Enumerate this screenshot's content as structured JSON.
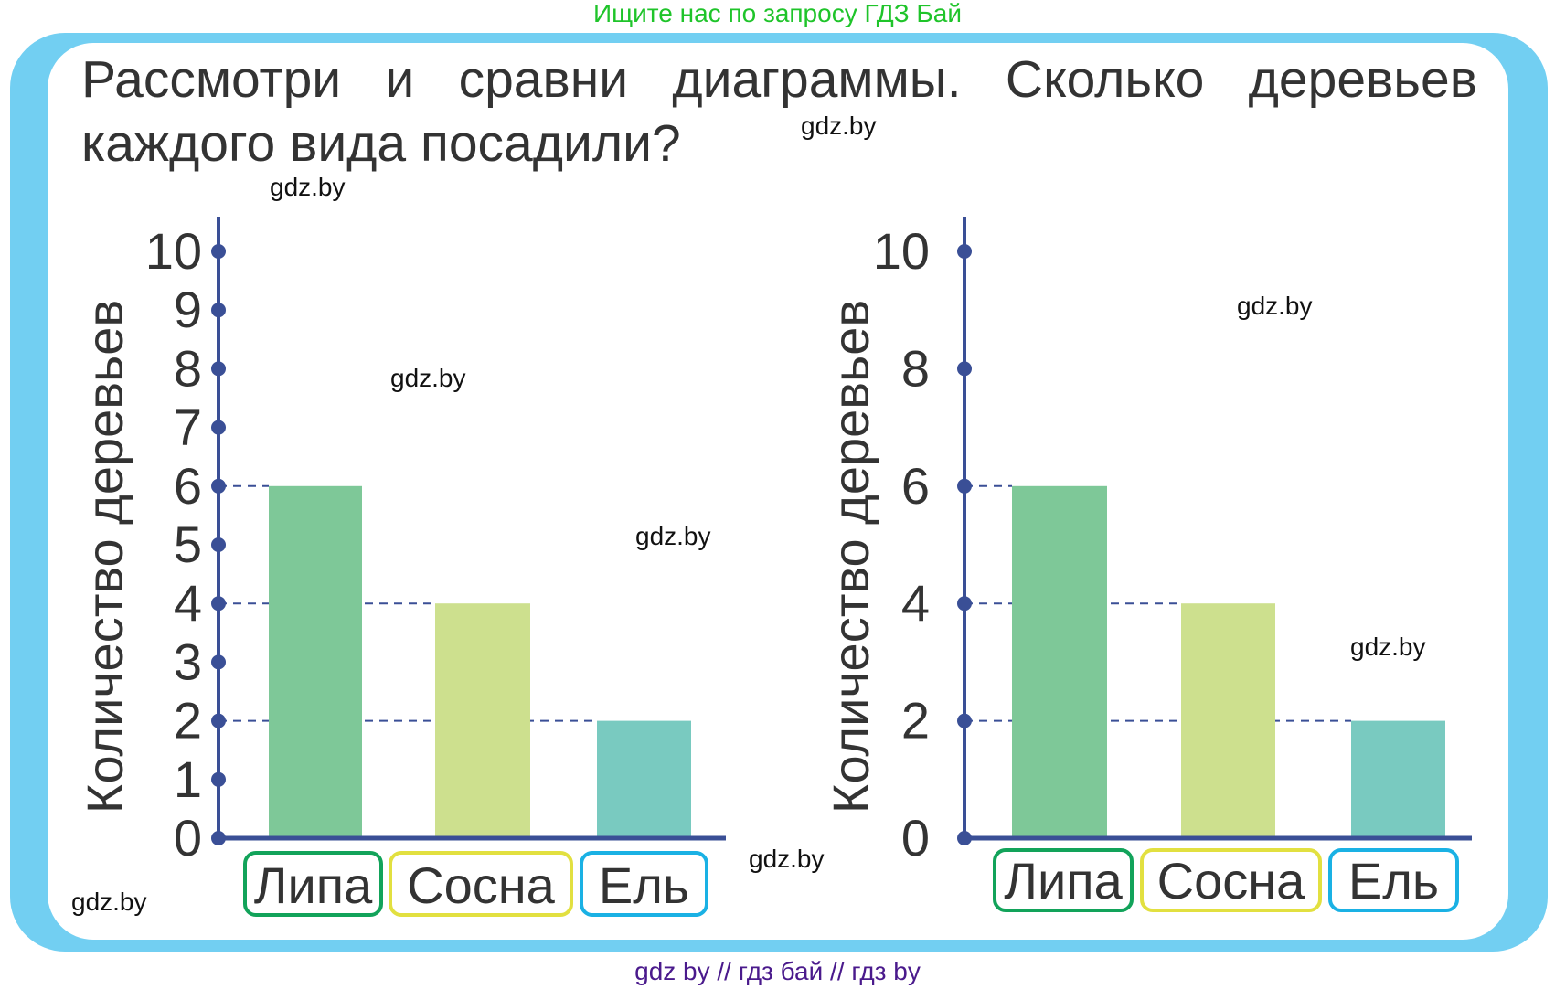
{
  "header_note": "Ищите нас по запросу ГДЗ Бай",
  "footer_note": "gdz by  //  гдз бай  //  гдз by",
  "title": {
    "line1": "Рассмотри и сравни диаграммы. Сколько деревьев",
    "line2": "каждого вида посадили?"
  },
  "watermark": "gdz.by",
  "colors": {
    "frame": "#72cff2",
    "axis": "#3a4f96",
    "text": "#333333"
  },
  "chart_data": [
    {
      "type": "bar",
      "ylabel": "Количество деревьев",
      "xlabel": "",
      "ylim": [
        0,
        10
      ],
      "yticks": [
        "0",
        "1",
        "2",
        "3",
        "4",
        "5",
        "6",
        "7",
        "8",
        "9",
        "10"
      ],
      "categories": [
        "Липа",
        "Сосна",
        "Ель"
      ],
      "values": [
        6,
        4,
        2
      ],
      "bar_colors": [
        "#7ec898",
        "#cde08e",
        "#79cac0"
      ],
      "label_border_colors": [
        "#12a35a",
        "#e2e040",
        "#1ab1e4"
      ],
      "grid": false,
      "guide_lines": "dashed at bar values"
    },
    {
      "type": "bar",
      "ylabel": "Количество деревьев",
      "xlabel": "",
      "ylim": [
        0,
        10
      ],
      "yticks": [
        "0",
        "2",
        "4",
        "6",
        "8",
        "10"
      ],
      "categories": [
        "Липа",
        "Сосна",
        "Ель"
      ],
      "values": [
        6,
        4,
        2
      ],
      "bar_colors": [
        "#7ec898",
        "#cde08e",
        "#79cac0"
      ],
      "label_border_colors": [
        "#12a35a",
        "#e2e040",
        "#1ab1e4"
      ],
      "grid": false,
      "guide_lines": "dashed at bar values"
    }
  ]
}
